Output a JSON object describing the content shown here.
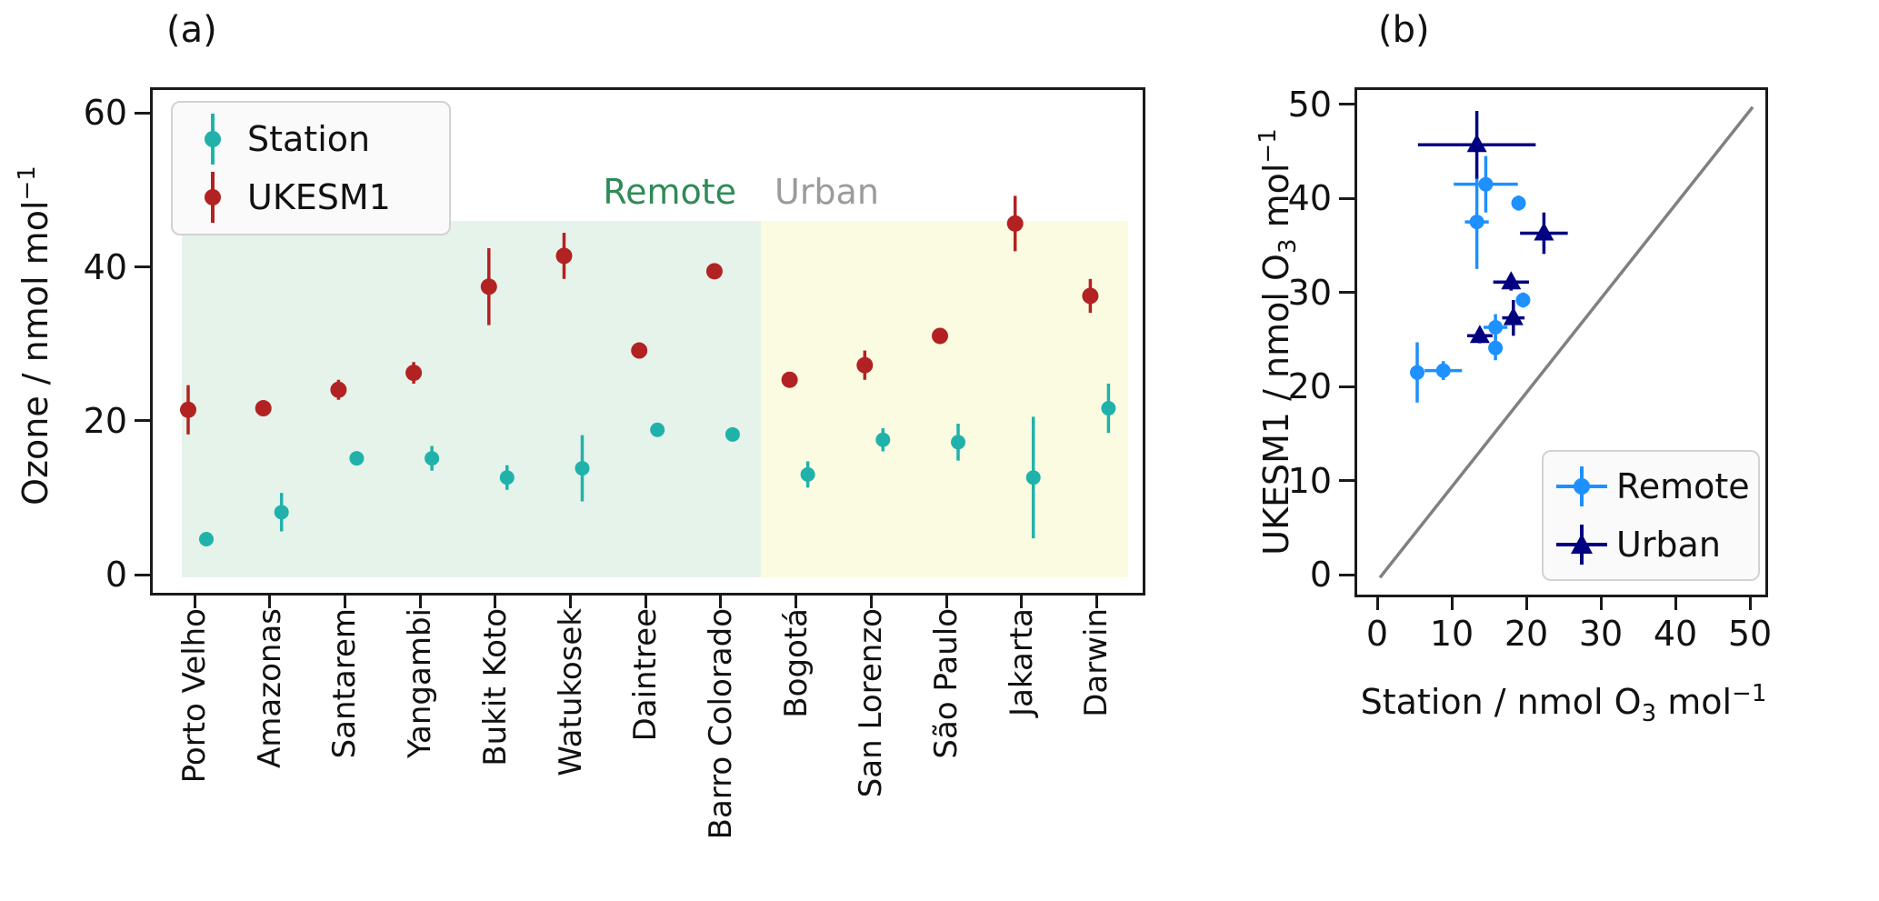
{
  "panel_a": {
    "title": "(a)",
    "ylabel": {
      "main": "Ozone / nmol mol",
      "sup": "−1"
    },
    "yticks": [
      0,
      20,
      40,
      60
    ],
    "legend": [
      {
        "label": "Station",
        "color": "#20b2aa"
      },
      {
        "label": "UKESM1",
        "color": "#b22222"
      }
    ],
    "regions": [
      {
        "label": "Remote",
        "text_color": "#2e8b57",
        "bg": "#e6f3ea"
      },
      {
        "label": "Urban",
        "text_color": "#9b9b9b",
        "bg": "#fbfbe1"
      }
    ]
  },
  "panel_b": {
    "title": "(b)",
    "xlabel": {
      "pre": "Station / nmol O",
      "sub": "3",
      "mid": " mol",
      "sup": "−1"
    },
    "ylabel": {
      "pre": "UKESM1 / nmol O",
      "sub": "3",
      "mid": " mol",
      "sup": "−1"
    },
    "xticks": [
      0,
      10,
      20,
      30,
      40,
      50
    ],
    "yticks": [
      0,
      10,
      20,
      30,
      40,
      50
    ],
    "legend": [
      {
        "label": "Remote",
        "color": "#1e90ff",
        "marker": "circle"
      },
      {
        "label": "Urban",
        "color": "#000080",
        "marker": "triangle"
      }
    ],
    "one_to_one_line_color": "#808080"
  },
  "chart_data": [
    {
      "type": "scatter",
      "panel": "a",
      "title": "(a)",
      "ylabel": "Ozone / nmol mol⁻¹",
      "ylim": [
        0,
        63
      ],
      "yticks": [
        0,
        20,
        40,
        60
      ],
      "grid": false,
      "legend_position": "upper left",
      "categories": [
        "Porto Velho",
        "Amazonas",
        "Santarem",
        "Yangambi",
        "Bukit Koto",
        "Watukosek",
        "Daintree",
        "Barro Colorado",
        "Bogotá",
        "San Lorenzo",
        "São Paulo",
        "Jakarta",
        "Darwin"
      ],
      "series": [
        {
          "name": "Station",
          "color": "#20b2aa",
          "values": [
            5.0,
            8.5,
            15.5,
            15.5,
            13.0,
            14.2,
            19.2,
            18.6,
            13.4,
            17.9,
            17.6,
            13.0,
            22.0
          ],
          "errors": [
            0.5,
            2.5,
            0.5,
            1.6,
            1.6,
            4.3,
            0.5,
            0.5,
            1.7,
            1.5,
            2.4,
            7.9,
            3.2
          ]
        },
        {
          "name": "UKESM1",
          "color": "#b22222",
          "values": [
            21.8,
            22.0,
            24.4,
            26.6,
            37.8,
            41.8,
            29.5,
            39.8,
            25.7,
            27.6,
            31.4,
            46.0,
            36.6
          ],
          "errors": [
            3.2,
            1.0,
            1.3,
            1.4,
            5.0,
            3.0,
            0.8,
            0.8,
            0.8,
            1.9,
            0.9,
            3.6,
            2.2
          ]
        }
      ],
      "regions": [
        {
          "label": "Remote",
          "from_category": "Porto Velho",
          "to_category": "Barro Colorado",
          "bg": "#e6f3ea"
        },
        {
          "label": "Urban",
          "from_category": "Bogotá",
          "to_category": "Darwin",
          "bg": "#fbfbe1"
        }
      ]
    },
    {
      "type": "scatter",
      "panel": "b",
      "title": "(b)",
      "xlabel": "Station / nmol O₃ mol⁻¹",
      "ylabel": "UKESM1 / nmol O₃ mol⁻¹",
      "xlim": [
        0,
        52
      ],
      "ylim": [
        0,
        52
      ],
      "xticks": [
        0,
        10,
        20,
        30,
        40,
        50
      ],
      "yticks": [
        0,
        10,
        20,
        30,
        40,
        50
      ],
      "grid": false,
      "legend_position": "lower right",
      "one_to_one_line": {
        "x": [
          0,
          50
        ],
        "y": [
          0,
          50
        ],
        "color": "#808080"
      },
      "point_format": "[station_x, ukesm1_y, xerr, yerr]",
      "series": [
        {
          "name": "Remote",
          "marker": "circle",
          "color": "#1e90ff",
          "points": [
            [
              5.0,
              21.8,
              0.5,
              3.2
            ],
            [
              8.5,
              22.0,
              2.5,
              1.0
            ],
            [
              15.5,
              24.4,
              0.5,
              1.3
            ],
            [
              15.5,
              26.6,
              1.6,
              1.4
            ],
            [
              13.0,
              37.8,
              1.6,
              5.0
            ],
            [
              14.2,
              41.8,
              4.3,
              3.0
            ],
            [
              19.2,
              29.5,
              0.5,
              0.8
            ],
            [
              18.6,
              39.8,
              0.5,
              0.8
            ]
          ]
        },
        {
          "name": "Urban",
          "marker": "triangle",
          "color": "#000080",
          "points": [
            [
              13.4,
              25.7,
              1.7,
              0.8
            ],
            [
              17.9,
              27.6,
              1.5,
              1.9
            ],
            [
              17.6,
              31.4,
              2.4,
              0.9
            ],
            [
              13.0,
              46.0,
              7.9,
              3.6
            ],
            [
              22.0,
              36.6,
              3.2,
              2.2
            ]
          ]
        }
      ]
    }
  ]
}
